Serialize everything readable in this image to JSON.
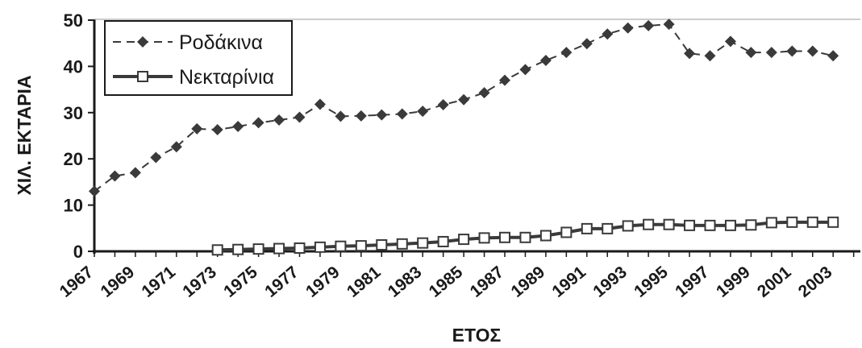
{
  "chart_data": {
    "type": "line",
    "xlabel": "ΕΤΟΣ",
    "ylabel": "ΧΙΛ. ΕΚΤΑΡΙΑ",
    "xlim": [
      1967,
      2004
    ],
    "ylim": [
      0,
      50
    ],
    "y_ticks": [
      "0",
      "10",
      "20",
      "30",
      "40",
      "50"
    ],
    "x_ticks": [
      "1967",
      "1969",
      "1971",
      "1973",
      "1975",
      "1977",
      "1979",
      "1981",
      "1983",
      "1985",
      "1987",
      "1989",
      "1991",
      "1993",
      "1995",
      "1997",
      "1999",
      "2001",
      "2003"
    ],
    "grid": false,
    "legend_position": "top-left",
    "series": [
      {
        "name": "Ροδάκινα",
        "color": "#3a3a3a",
        "marker": "diamond",
        "line_style": "dashed",
        "x": [
          1967,
          1968,
          1969,
          1970,
          1971,
          1972,
          1973,
          1974,
          1975,
          1976,
          1977,
          1978,
          1979,
          1980,
          1981,
          1982,
          1983,
          1984,
          1985,
          1986,
          1987,
          1988,
          1989,
          1990,
          1991,
          1992,
          1993,
          1994,
          1995,
          1996,
          1997,
          1998,
          1999,
          2000,
          2001,
          2002,
          2003
        ],
        "values": [
          13,
          16.3,
          17,
          20.3,
          22.6,
          26.5,
          26.3,
          27,
          27.8,
          28.4,
          29,
          31.8,
          29.2,
          29.3,
          29.5,
          29.7,
          30.3,
          31.7,
          32.8,
          34.3,
          37,
          39.3,
          41.3,
          43,
          44.9,
          47,
          48.3,
          48.8,
          49.1,
          42.8,
          42.3,
          45.4,
          43,
          43,
          43.3,
          43.3,
          42.3
        ]
      },
      {
        "name": "Νεκταρίνια",
        "color": "#3a3a3a",
        "marker": "square",
        "line_style": "solid",
        "x": [
          1973,
          1974,
          1975,
          1976,
          1977,
          1978,
          1979,
          1980,
          1981,
          1982,
          1983,
          1984,
          1985,
          1986,
          1987,
          1988,
          1989,
          1990,
          1991,
          1992,
          1993,
          1994,
          1995,
          1996,
          1997,
          1998,
          1999,
          2000,
          2001,
          2002,
          2003
        ],
        "values": [
          0.3,
          0.4,
          0.5,
          0.6,
          0.7,
          0.9,
          1.1,
          1.2,
          1.4,
          1.6,
          1.8,
          2.1,
          2.6,
          2.9,
          3,
          3,
          3.4,
          4.1,
          4.9,
          4.9,
          5.5,
          5.8,
          5.8,
          5.6,
          5.6,
          5.6,
          5.7,
          6.2,
          6.3,
          6.3,
          6.3
        ]
      }
    ]
  }
}
